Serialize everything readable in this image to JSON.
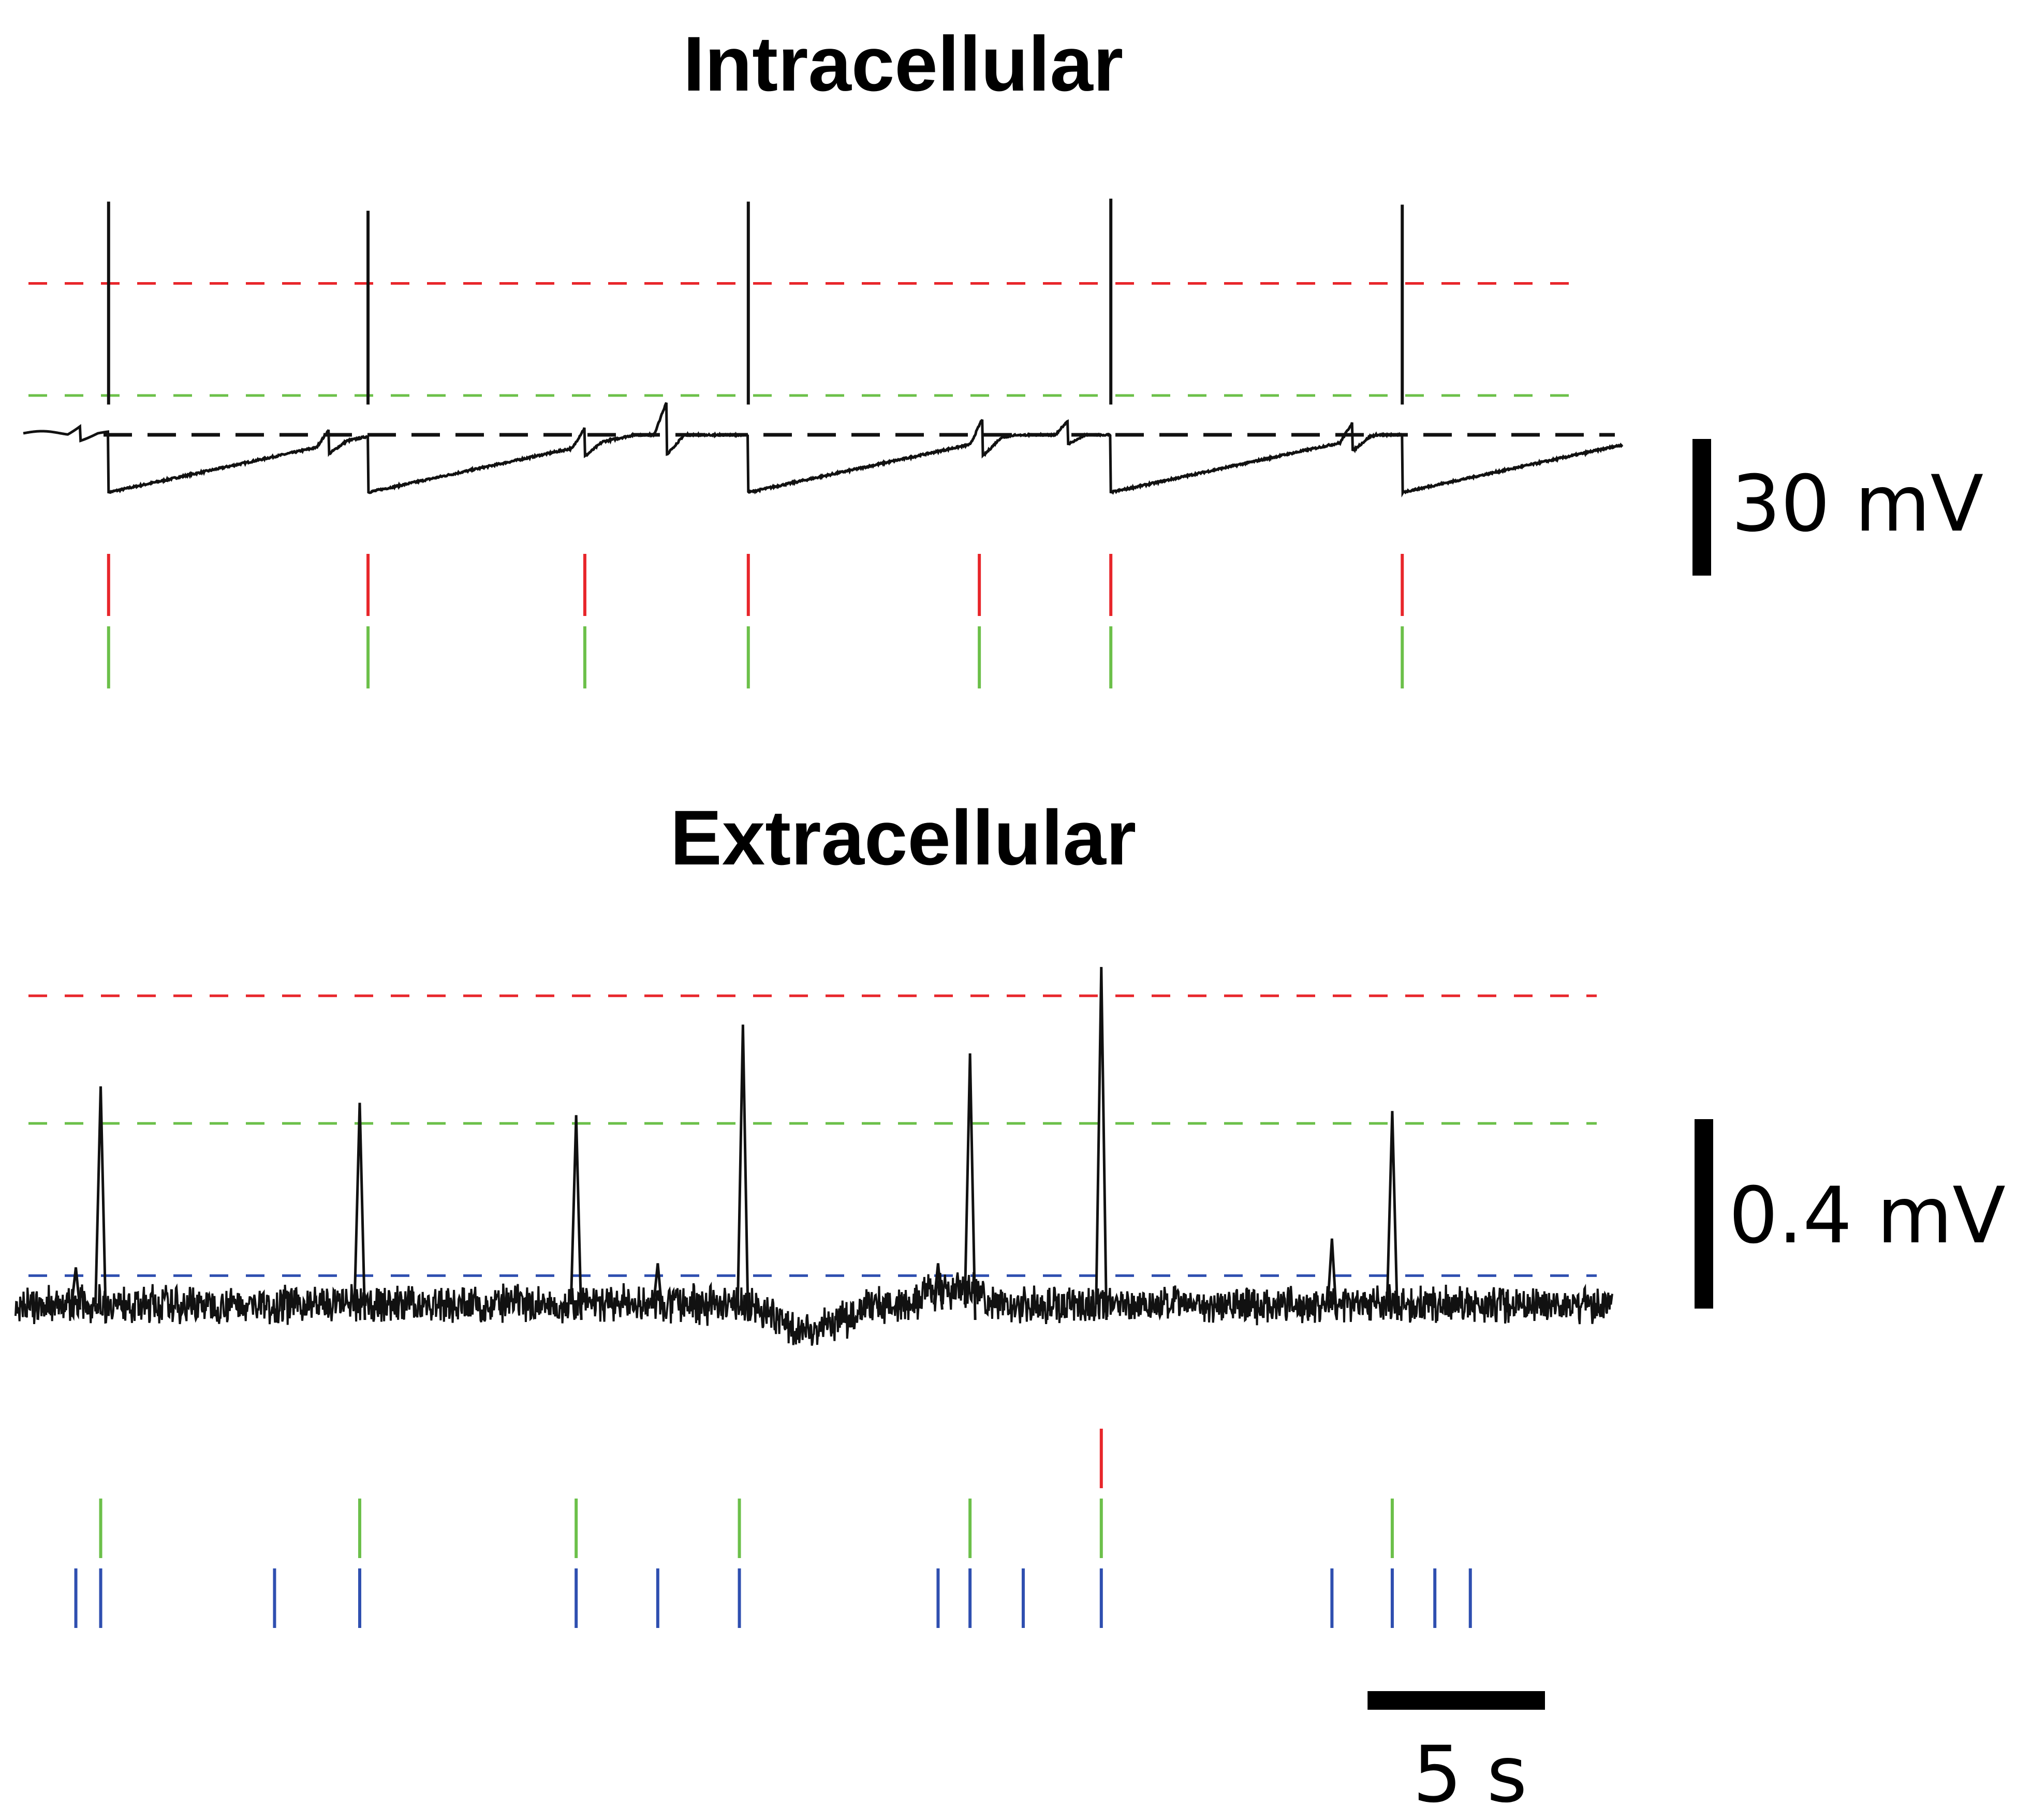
{
  "chart_data": [
    {
      "type": "line",
      "title": "Intracellular",
      "xlabel": "",
      "ylabel": "",
      "time_unit": "s",
      "x_range_s": [
        0,
        45
      ],
      "scale_bar": {
        "label": "30 mV",
        "value_mV": 30
      },
      "thresholds": [
        {
          "color": "#e8262b",
          "level_mV": 50,
          "style": "dashed"
        },
        {
          "color": "#6cc04a",
          "level_mV": 13,
          "style": "dashed"
        },
        {
          "color": "#111111",
          "level_mV": 0,
          "style": "dashed",
          "role": "baseline"
        }
      ],
      "spikes": [
        {
          "t": 2.4,
          "peak_mV": 77,
          "trough_mV": -19
        },
        {
          "t": 9.7,
          "peak_mV": 74,
          "trough_mV": -19
        },
        {
          "t": 20.4,
          "peak_mV": 77,
          "trough_mV": -19
        },
        {
          "t": 30.6,
          "peak_mV": 78,
          "trough_mV": -19
        },
        {
          "t": 38.8,
          "peak_mV": 76,
          "trough_mV": -19
        }
      ],
      "bumps": [
        {
          "t": 1.6,
          "amp_mV": 3
        },
        {
          "t": 8.6,
          "amp_mV": 5
        },
        {
          "t": 15.8,
          "amp_mV": 6
        },
        {
          "t": 18.1,
          "amp_mV": 11
        },
        {
          "t": 27.0,
          "amp_mV": 8
        },
        {
          "t": 29.4,
          "amp_mV": 5
        },
        {
          "t": 37.4,
          "amp_mV": 6
        }
      ],
      "event_rasters": [
        {
          "color": "#e8262b",
          "times": [
            2.4,
            9.7,
            15.8,
            20.4,
            26.9,
            30.6,
            38.8
          ]
        },
        {
          "color": "#6cc04a",
          "times": [
            2.4,
            9.7,
            15.8,
            20.4,
            26.9,
            30.6,
            38.8
          ]
        }
      ]
    },
    {
      "type": "line",
      "title": "Extracellular",
      "xlabel": "",
      "ylabel": "",
      "time_unit": "s",
      "x_range_s": [
        0,
        45
      ],
      "scale_bar": {
        "label": "0.4 mV",
        "value_mV": 0.4
      },
      "time_scale_bar": {
        "label": "5 s",
        "value_s": 5
      },
      "thresholds": [
        {
          "color": "#e8262b",
          "level_mV": 0.75,
          "style": "dashed"
        },
        {
          "color": "#6cc04a",
          "level_mV": 0.44,
          "style": "dashed"
        },
        {
          "color": "#2f4fb0",
          "level_mV": 0.07,
          "style": "dashed"
        }
      ],
      "spikes": [
        {
          "t": 2.4,
          "peak_mV": 0.53
        },
        {
          "t": 9.7,
          "peak_mV": 0.49
        },
        {
          "t": 15.8,
          "peak_mV": 0.46
        },
        {
          "t": 20.5,
          "peak_mV": 0.68
        },
        {
          "t": 26.9,
          "peak_mV": 0.61
        },
        {
          "t": 30.6,
          "peak_mV": 0.82
        },
        {
          "t": 38.8,
          "peak_mV": 0.47
        }
      ],
      "small_spikes": [
        {
          "t": 1.7,
          "peak_mV": 0.09
        },
        {
          "t": 18.1,
          "peak_mV": 0.1
        },
        {
          "t": 26.0,
          "peak_mV": 0.1
        },
        {
          "t": 37.1,
          "peak_mV": 0.16
        }
      ],
      "event_rasters": [
        {
          "color": "#e8262b",
          "times": [
            30.6
          ]
        },
        {
          "color": "#6cc04a",
          "times": [
            2.4,
            9.7,
            15.8,
            20.4,
            26.9,
            30.6,
            38.8
          ]
        },
        {
          "color": "#2f4fb0",
          "times": [
            1.7,
            2.4,
            7.3,
            9.7,
            15.8,
            18.1,
            20.4,
            26.0,
            26.9,
            28.4,
            30.6,
            37.1,
            38.8,
            40.0,
            41.0
          ]
        }
      ]
    }
  ]
}
